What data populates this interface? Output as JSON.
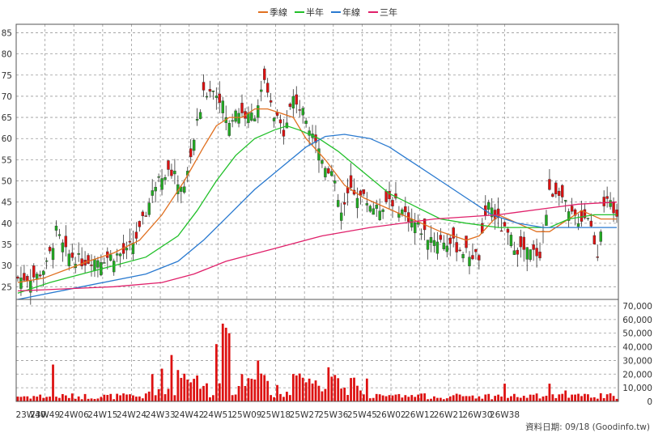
{
  "chart_data": {
    "type": "candlestick",
    "legend": [
      {
        "name": "季線",
        "color": "#e07020"
      },
      {
        "name": "半年",
        "color": "#22c02a"
      },
      {
        "name": "年線",
        "color": "#2a7ad0"
      },
      {
        "name": "三年",
        "color": "#e0206a"
      }
    ],
    "colors": {
      "up": "#22aa22",
      "down": "#dd1111",
      "volume": "#dd1111",
      "grid": "#9a9a9a",
      "ma_quarter": "#e07020",
      "ma_half": "#22c02a",
      "ma_year": "#2a7ad0",
      "ma_three": "#e0206a"
    },
    "price_axis": {
      "ticks": [
        "85",
        "80",
        "75",
        "70",
        "65",
        "60",
        "55",
        "50",
        "45",
        "40",
        "35",
        "30",
        "25"
      ],
      "range": [
        22,
        87
      ]
    },
    "volume_axis": {
      "ticks": [
        "70,000",
        "60,000",
        "50,000",
        "40,000",
        "30,000",
        "20,000",
        "10,000",
        "0"
      ],
      "range": [
        0,
        70000
      ]
    },
    "x_tick_labels": [
      "23W40",
      "23W49",
      "24W06",
      "24W15",
      "24W24",
      "24W33",
      "24W42",
      "24W51",
      "25W09",
      "25W18",
      "25W27",
      "25W36",
      "25W45",
      "26W02",
      "26W12",
      "26W21",
      "26W30",
      "26W38"
    ],
    "grid": true,
    "footer": "資料日期: 09/18 (Goodinfo.tw)",
    "ma_quarter": [
      [
        0,
        26
      ],
      [
        8,
        27
      ],
      [
        15,
        29
      ],
      [
        22,
        31
      ],
      [
        30,
        33
      ],
      [
        38,
        36
      ],
      [
        45,
        42
      ],
      [
        52,
        50
      ],
      [
        58,
        58
      ],
      [
        62,
        63
      ],
      [
        66,
        65
      ],
      [
        70,
        65
      ],
      [
        74,
        67
      ],
      [
        78,
        67
      ],
      [
        82,
        66
      ],
      [
        86,
        65
      ],
      [
        90,
        60
      ],
      [
        96,
        55
      ],
      [
        102,
        49
      ],
      [
        108,
        46
      ],
      [
        114,
        44
      ],
      [
        120,
        42
      ],
      [
        126,
        40
      ],
      [
        132,
        38
      ],
      [
        136,
        37
      ],
      [
        140,
        36
      ],
      [
        144,
        37
      ],
      [
        150,
        42
      ],
      [
        156,
        40
      ],
      [
        162,
        38
      ],
      [
        166,
        38
      ],
      [
        170,
        40
      ],
      [
        176,
        43
      ],
      [
        182,
        41
      ],
      [
        187,
        41
      ]
    ],
    "ma_half": [
      [
        0,
        23.5
      ],
      [
        10,
        26
      ],
      [
        20,
        28
      ],
      [
        30,
        30
      ],
      [
        40,
        32
      ],
      [
        50,
        37
      ],
      [
        56,
        43
      ],
      [
        62,
        50
      ],
      [
        68,
        56
      ],
      [
        74,
        60
      ],
      [
        80,
        62
      ],
      [
        84,
        63
      ],
      [
        88,
        62
      ],
      [
        94,
        60
      ],
      [
        100,
        57
      ],
      [
        108,
        52
      ],
      [
        116,
        47
      ],
      [
        124,
        44
      ],
      [
        132,
        41
      ],
      [
        140,
        40
      ],
      [
        150,
        39
      ],
      [
        158,
        39
      ],
      [
        166,
        39
      ],
      [
        172,
        41
      ],
      [
        180,
        42
      ],
      [
        187,
        42
      ]
    ],
    "ma_year": [
      [
        0,
        22
      ],
      [
        20,
        25
      ],
      [
        40,
        28
      ],
      [
        50,
        31
      ],
      [
        58,
        36
      ],
      [
        66,
        42
      ],
      [
        74,
        48
      ],
      [
        82,
        53
      ],
      [
        90,
        58
      ],
      [
        96,
        60.5
      ],
      [
        102,
        61
      ],
      [
        110,
        60
      ],
      [
        116,
        58
      ],
      [
        124,
        54
      ],
      [
        132,
        50
      ],
      [
        140,
        46
      ],
      [
        148,
        42
      ],
      [
        156,
        40
      ],
      [
        164,
        39
      ],
      [
        172,
        39
      ],
      [
        180,
        39
      ],
      [
        187,
        39
      ]
    ],
    "ma_three": [
      [
        0,
        24
      ],
      [
        30,
        25
      ],
      [
        45,
        26
      ],
      [
        55,
        28
      ],
      [
        65,
        31
      ],
      [
        80,
        34
      ],
      [
        95,
        37
      ],
      [
        110,
        39
      ],
      [
        130,
        41
      ],
      [
        150,
        42
      ],
      [
        165,
        43.5
      ],
      [
        175,
        44.5
      ],
      [
        187,
        45
      ]
    ],
    "weeks": 188
  }
}
